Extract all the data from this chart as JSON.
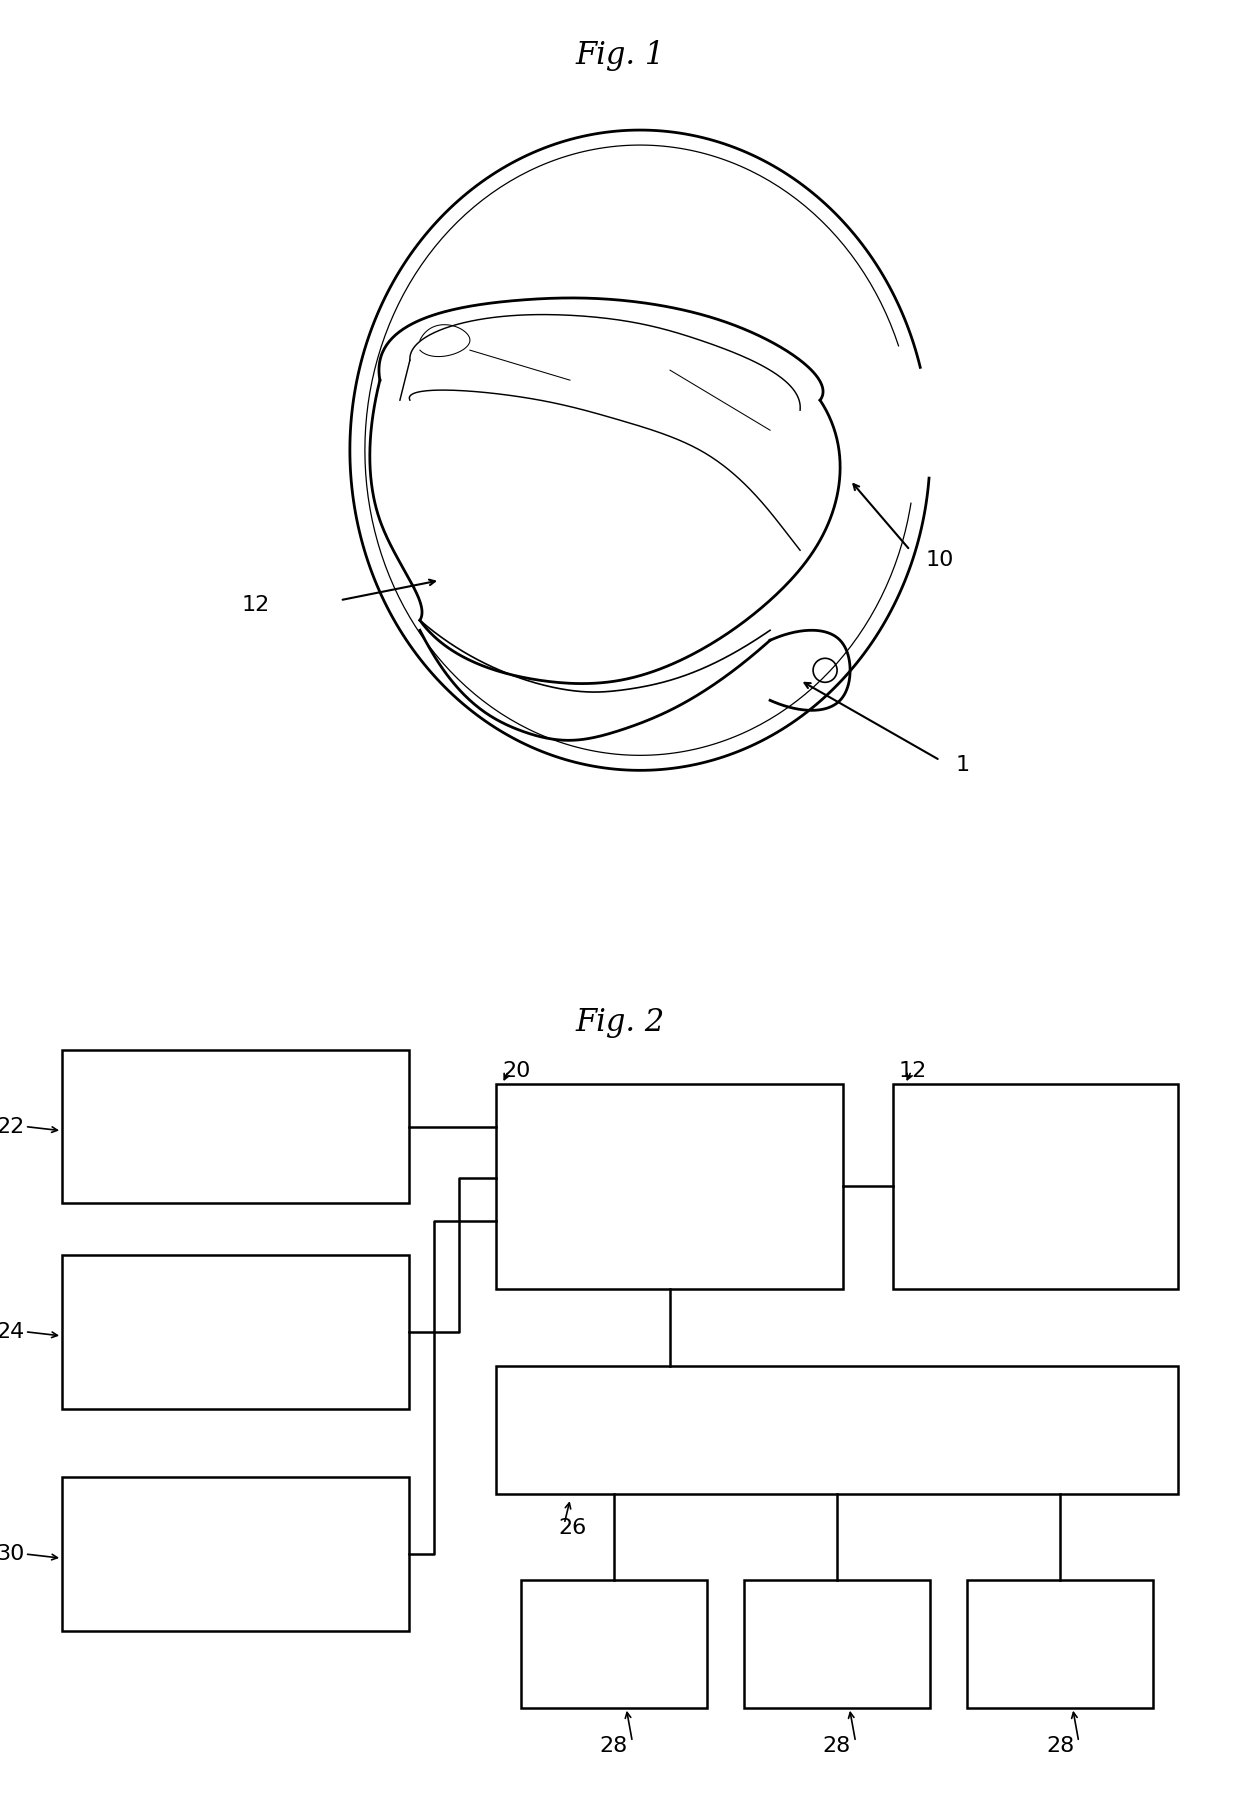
{
  "fig1_title": "Fig. 1",
  "fig2_title": "Fig. 2",
  "background_color": "#ffffff",
  "line_color": "#000000",
  "label_10": "10",
  "label_12": "12",
  "label_1": "1",
  "label_22": "22",
  "label_24": "24",
  "label_30": "30",
  "label_20": "20",
  "label_26": "26",
  "label_28": "28",
  "label_12b": "12",
  "title_fontsize": 22,
  "label_fontsize": 16
}
